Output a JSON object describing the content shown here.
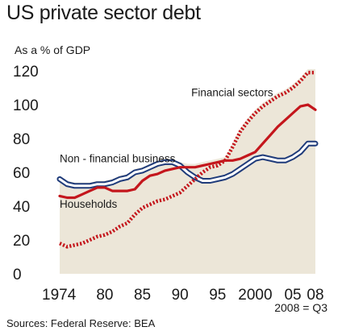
{
  "chart_data": {
    "type": "line",
    "title": "US private sector debt",
    "ylabel": "As a % of GDP",
    "ylim": [
      0,
      120
    ],
    "yticks": [
      0,
      20,
      40,
      60,
      80,
      100,
      120
    ],
    "xlim": [
      1974,
      2008.75
    ],
    "xticks": [
      {
        "value": 1974,
        "label": "1974"
      },
      {
        "value": 1980,
        "label": "80"
      },
      {
        "value": 1985,
        "label": "85"
      },
      {
        "value": 1990,
        "label": "90"
      },
      {
        "value": 1995,
        "label": "95"
      },
      {
        "value": 2000,
        "label": "2000"
      },
      {
        "value": 2005,
        "label": "05"
      },
      {
        "value": 2008,
        "label": "08"
      }
    ],
    "note": "2008 = Q3",
    "source": "Sources: Federal Reserve: BEA",
    "grid": false,
    "background_color": "#ece6d8",
    "series": [
      {
        "name": "Financial sectors",
        "style": "dotted",
        "color": "#c4161c",
        "label_at": [
          1991.5,
          105
        ],
        "points": [
          [
            1974,
            18
          ],
          [
            1975,
            16
          ],
          [
            1976,
            17
          ],
          [
            1977,
            18
          ],
          [
            1978,
            20
          ],
          [
            1979,
            22
          ],
          [
            1980,
            23
          ],
          [
            1981,
            25
          ],
          [
            1982,
            28
          ],
          [
            1983,
            30
          ],
          [
            1984,
            35
          ],
          [
            1985,
            39
          ],
          [
            1986,
            41
          ],
          [
            1987,
            43
          ],
          [
            1988,
            44
          ],
          [
            1989,
            46
          ],
          [
            1990,
            48
          ],
          [
            1991,
            52
          ],
          [
            1992,
            56
          ],
          [
            1993,
            60
          ],
          [
            1994,
            63
          ],
          [
            1995,
            64
          ],
          [
            1996,
            67
          ],
          [
            1997,
            75
          ],
          [
            1998,
            84
          ],
          [
            1999,
            90
          ],
          [
            2000,
            95
          ],
          [
            2001,
            99
          ],
          [
            2002,
            102
          ],
          [
            2003,
            105
          ],
          [
            2004,
            107
          ],
          [
            2005,
            110
          ],
          [
            2006,
            114
          ],
          [
            2007,
            119
          ],
          [
            2008,
            119
          ]
        ]
      },
      {
        "name": "Non - financial business",
        "style": "double-line",
        "color": "#1f3b7a",
        "label_at": [
          1974,
          66
        ],
        "points": [
          [
            1974,
            56
          ],
          [
            1975,
            53
          ],
          [
            1976,
            52
          ],
          [
            1977,
            52
          ],
          [
            1978,
            52
          ],
          [
            1979,
            53
          ],
          [
            1980,
            53
          ],
          [
            1981,
            54
          ],
          [
            1982,
            56
          ],
          [
            1983,
            57
          ],
          [
            1984,
            60
          ],
          [
            1985,
            61
          ],
          [
            1986,
            63
          ],
          [
            1987,
            65
          ],
          [
            1988,
            66
          ],
          [
            1989,
            66
          ],
          [
            1990,
            64
          ],
          [
            1991,
            60
          ],
          [
            1992,
            57
          ],
          [
            1993,
            55
          ],
          [
            1994,
            55
          ],
          [
            1995,
            56
          ],
          [
            1996,
            57
          ],
          [
            1997,
            59
          ],
          [
            1998,
            62
          ],
          [
            1999,
            65
          ],
          [
            2000,
            68
          ],
          [
            2001,
            69
          ],
          [
            2002,
            68
          ],
          [
            2003,
            67
          ],
          [
            2004,
            67
          ],
          [
            2005,
            69
          ],
          [
            2006,
            72
          ],
          [
            2007,
            77
          ],
          [
            2008,
            77
          ]
        ]
      },
      {
        "name": "Households",
        "style": "solid",
        "color": "#c4161c",
        "label_at": [
          1974,
          39
        ],
        "points": [
          [
            1974,
            46
          ],
          [
            1975,
            45
          ],
          [
            1976,
            45
          ],
          [
            1977,
            47
          ],
          [
            1978,
            49
          ],
          [
            1979,
            51
          ],
          [
            1980,
            51
          ],
          [
            1981,
            49
          ],
          [
            1982,
            49
          ],
          [
            1983,
            49
          ],
          [
            1984,
            50
          ],
          [
            1985,
            55
          ],
          [
            1986,
            58
          ],
          [
            1987,
            59
          ],
          [
            1988,
            61
          ],
          [
            1989,
            62
          ],
          [
            1990,
            63
          ],
          [
            1991,
            63
          ],
          [
            1992,
            63
          ],
          [
            1993,
            64
          ],
          [
            1994,
            65
          ],
          [
            1995,
            66
          ],
          [
            1996,
            67
          ],
          [
            1997,
            67
          ],
          [
            1998,
            68
          ],
          [
            1999,
            70
          ],
          [
            2000,
            72
          ],
          [
            2001,
            77
          ],
          [
            2002,
            82
          ],
          [
            2003,
            87
          ],
          [
            2004,
            91
          ],
          [
            2005,
            95
          ],
          [
            2006,
            99
          ],
          [
            2007,
            100
          ],
          [
            2008,
            97
          ]
        ]
      }
    ]
  }
}
